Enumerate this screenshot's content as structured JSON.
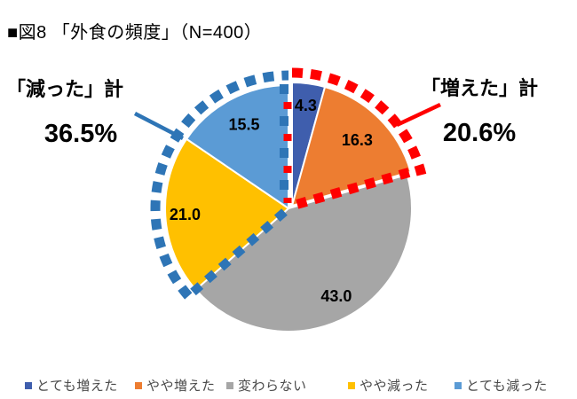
{
  "title": "■図8 「外食の頻度」（N=400）",
  "chart_data": {
    "type": "pie",
    "title": "■図8 「外食の頻度」（N=400）",
    "categories": [
      "とても増えた",
      "やや増えた",
      "変わらない",
      "やや減った",
      "とても減った"
    ],
    "values": [
      4.3,
      16.3,
      43.0,
      21.0,
      15.5
    ],
    "data_labels": [
      "4.3",
      "16.3",
      "43.0",
      "21.0",
      "15.5"
    ],
    "colors": [
      "#3F5EAD",
      "#ED7D31",
      "#A6A6A6",
      "#FFC000",
      "#5B9BD5"
    ],
    "start_angle_deg": 0,
    "direction": "clockwise",
    "exploded_categories": [
      "とても増えた",
      "やや増えた"
    ],
    "legend_position": "bottom",
    "annotations": [
      {
        "label": "「減った」計",
        "value": "36.5%",
        "side": "left",
        "color": "#2E75B6",
        "group": [
          "やや減った",
          "とても減った"
        ]
      },
      {
        "label": "「増えた」計",
        "value": "20.6%",
        "side": "right",
        "color": "#FF0000",
        "group": [
          "とても増えた",
          "やや増えた"
        ]
      }
    ]
  }
}
